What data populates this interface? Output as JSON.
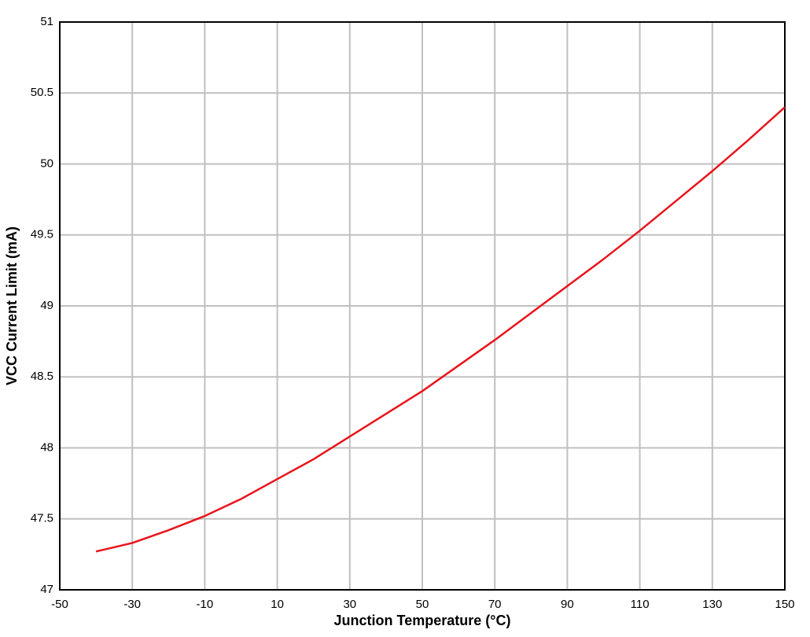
{
  "chart_data": {
    "type": "line",
    "x_label": "Junction Temperature (°C)",
    "y_label": "VCC Current Limit (mA)",
    "x": [
      -40,
      -30,
      -20,
      -10,
      0,
      10,
      20,
      30,
      40,
      50,
      60,
      70,
      80,
      90,
      100,
      110,
      120,
      130,
      140,
      150
    ],
    "series": [
      {
        "color": "#e8141c",
        "values": [
          47.27,
          47.33,
          47.42,
          47.52,
          47.64,
          47.78,
          47.92,
          48.08,
          48.24,
          48.4,
          48.58,
          48.76,
          48.95,
          49.14,
          49.33,
          49.53,
          49.74,
          49.95,
          50.17,
          50.4
        ]
      }
    ],
    "xlim": [
      -50,
      150
    ],
    "xticks": [
      -50,
      -30,
      -10,
      10,
      30,
      50,
      70,
      90,
      110,
      130,
      150
    ],
    "ylim": [
      47,
      51
    ],
    "yticks": [
      47,
      47.5,
      48,
      48.5,
      49,
      49.5,
      50,
      50.5,
      51
    ],
    "grid": true
  }
}
